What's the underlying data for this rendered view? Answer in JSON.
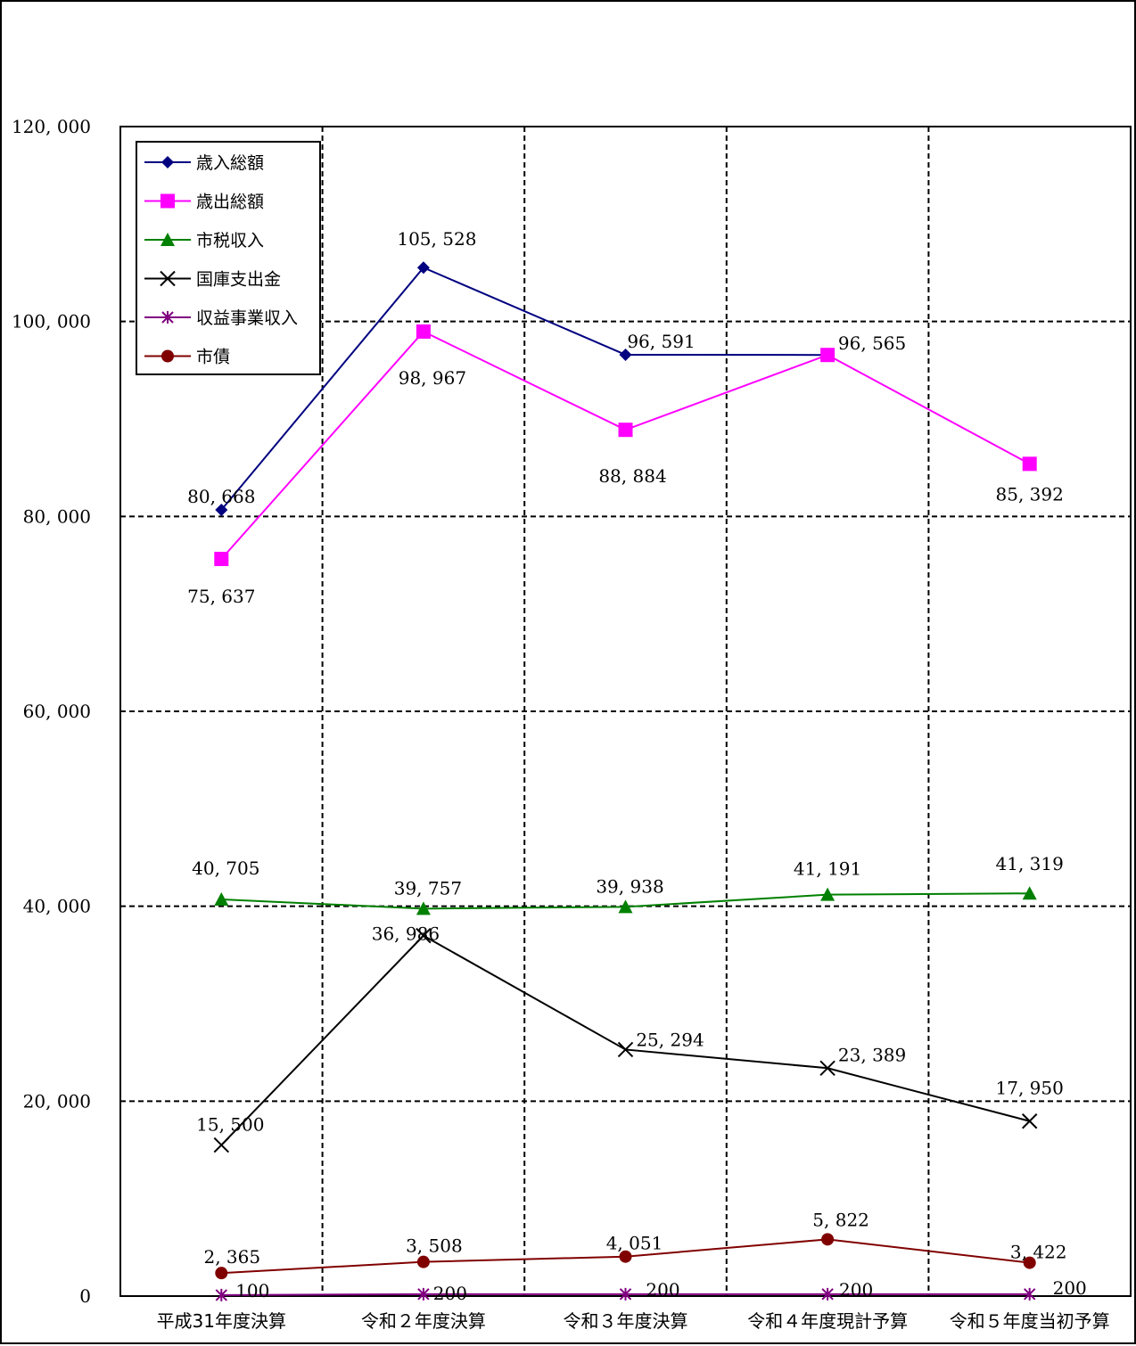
{
  "chart_data": {
    "type": "line",
    "categories": [
      "平成31年度決算",
      "令和２年度決算",
      "令和３年度決算",
      "令和４年度現計予算",
      "令和５年度当初予算"
    ],
    "ylim": [
      0,
      120000
    ],
    "yticks": [
      0,
      20000,
      40000,
      60000,
      80000,
      100000,
      120000
    ],
    "ytick_labels": [
      "0",
      "20, 000",
      "40, 000",
      "60, 000",
      "80, 000",
      "100, 000",
      "120, 000"
    ],
    "grid": true,
    "legend_position": "top-left",
    "series": [
      {
        "name": "歳入総額",
        "color": "#000080",
        "marker": "diamond",
        "values": [
          80668,
          105528,
          96591,
          96565,
          null
        ],
        "labels": [
          "80, 668",
          "105, 528",
          "96, 591",
          "96, 565",
          ""
        ]
      },
      {
        "name": "歳出総額",
        "color": "#ff00ff",
        "marker": "square",
        "values": [
          75637,
          98967,
          88884,
          96565,
          85392
        ],
        "labels": [
          "75, 637",
          "98, 967",
          "88, 884",
          "",
          "85, 392"
        ]
      },
      {
        "name": "市税収入",
        "color": "#008000",
        "marker": "triangle",
        "values": [
          40705,
          39757,
          39938,
          41191,
          41319
        ],
        "labels": [
          "40, 705",
          "39, 757",
          "39, 938",
          "41, 191",
          "41, 319"
        ]
      },
      {
        "name": "国庫支出金",
        "color": "#000000",
        "marker": "x",
        "values": [
          15500,
          36986,
          25294,
          23389,
          17950
        ],
        "labels": [
          "15, 500",
          "36, 986",
          "25, 294",
          "23, 389",
          "17, 950"
        ]
      },
      {
        "name": "収益事業収入",
        "color": "#800080",
        "marker": "star",
        "values": [
          100,
          200,
          200,
          200,
          200
        ],
        "labels": [
          "100",
          "200",
          "200",
          "200",
          "200"
        ]
      },
      {
        "name": "市債",
        "color": "#800000",
        "marker": "circle",
        "values": [
          2365,
          3508,
          4051,
          5822,
          3422
        ],
        "labels": [
          "2, 365",
          "3, 508",
          "4, 051",
          "5, 822",
          "3, 422"
        ]
      }
    ]
  }
}
